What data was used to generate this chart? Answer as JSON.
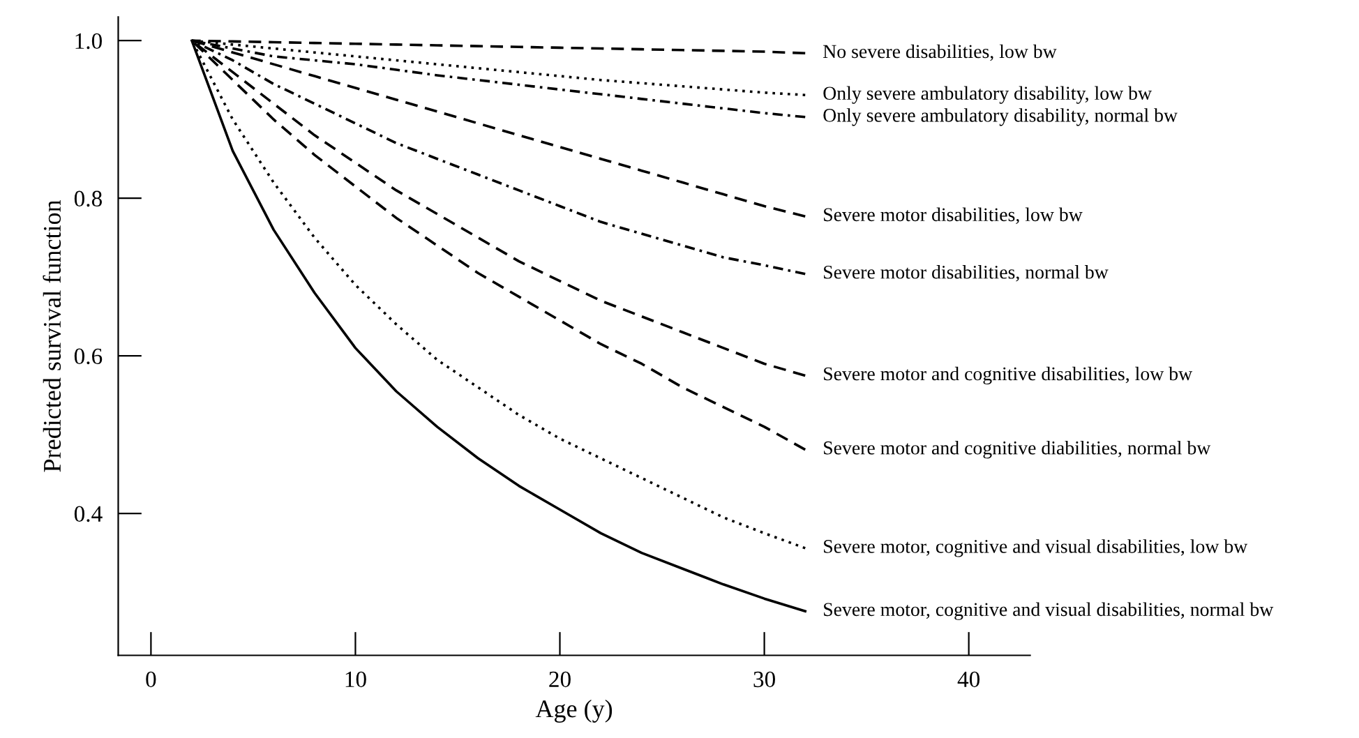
{
  "chart_data": {
    "type": "line",
    "xlabel": "Age (y)",
    "ylabel": "Predicted survival function",
    "x": [
      2,
      4,
      6,
      8,
      10,
      12,
      14,
      16,
      18,
      20,
      22,
      24,
      26,
      28,
      30,
      32
    ],
    "xlim": [
      -1.6,
      43
    ],
    "ylim": [
      0.22,
      1.03
    ],
    "xticks": [
      0,
      10,
      20,
      30,
      40
    ],
    "yticks": [
      {
        "value": 0.4,
        "label": "0.4"
      },
      {
        "value": 0.6,
        "label": "0.6"
      },
      {
        "value": 0.8,
        "label": "0.8"
      },
      {
        "value": 1.0,
        "label": "1.0"
      }
    ],
    "grid": false,
    "legend": false,
    "marker": "none",
    "series": [
      {
        "name": "No severe disabilities, low bw",
        "color": "#000000",
        "line_style": "dashed",
        "values": [
          1,
          0.999,
          0.998,
          0.997,
          0.996,
          0.995,
          0.994,
          0.993,
          0.992,
          0.991,
          0.99,
          0.989,
          0.988,
          0.987,
          0.986,
          0.984
        ]
      },
      {
        "name": "Only severe ambulatory disability, low bw",
        "color": "#000000",
        "line_style": "dotted",
        "values": [
          1,
          0.995,
          0.99,
          0.985,
          0.98,
          0.975,
          0.97,
          0.965,
          0.96,
          0.955,
          0.95,
          0.946,
          0.942,
          0.938,
          0.934,
          0.931
        ]
      },
      {
        "name": "Only severe ambulatory disability, normal bw",
        "color": "#000000",
        "line_style": "dashdot",
        "values": [
          1,
          0.99,
          0.98,
          0.975,
          0.97,
          0.963,
          0.956,
          0.95,
          0.944,
          0.938,
          0.932,
          0.926,
          0.92,
          0.914,
          0.908,
          0.903
        ]
      },
      {
        "name": "Severe motor disabilities, low bw",
        "color": "#000000",
        "line_style": "dashed",
        "values": [
          1,
          0.985,
          0.97,
          0.955,
          0.94,
          0.925,
          0.91,
          0.895,
          0.88,
          0.865,
          0.85,
          0.835,
          0.82,
          0.805,
          0.79,
          0.777
        ]
      },
      {
        "name": "Severe motor disabilities, normal bw",
        "color": "#000000",
        "line_style": "dashdot",
        "values": [
          1,
          0.975,
          0.945,
          0.92,
          0.895,
          0.87,
          0.85,
          0.83,
          0.81,
          0.79,
          0.77,
          0.755,
          0.74,
          0.725,
          0.715,
          0.704
        ]
      },
      {
        "name": "Severe motor and cognitive disabilities, low bw",
        "color": "#000000",
        "line_style": "dashed",
        "values": [
          1,
          0.96,
          0.92,
          0.88,
          0.845,
          0.81,
          0.78,
          0.75,
          0.72,
          0.695,
          0.67,
          0.65,
          0.63,
          0.61,
          0.59,
          0.575
        ]
      },
      {
        "name": "Severe motor and cognitive diabilities, normal bw",
        "color": "#000000",
        "line_style": "dashed",
        "values": [
          1,
          0.95,
          0.9,
          0.855,
          0.815,
          0.775,
          0.74,
          0.705,
          0.675,
          0.645,
          0.615,
          0.59,
          0.56,
          0.535,
          0.51,
          0.481
        ]
      },
      {
        "name": "Severe motor, cognitive and visual disabilities, low bw",
        "color": "#000000",
        "line_style": "dotted",
        "values": [
          1,
          0.9,
          0.82,
          0.75,
          0.69,
          0.64,
          0.595,
          0.56,
          0.525,
          0.495,
          0.47,
          0.445,
          0.42,
          0.395,
          0.375,
          0.356
        ]
      },
      {
        "name": "Severe motor, cognitive and visual disabilities, normal bw",
        "color": "#000000",
        "line_style": "solid",
        "values": [
          1,
          0.86,
          0.76,
          0.68,
          0.61,
          0.555,
          0.51,
          0.47,
          0.435,
          0.405,
          0.375,
          0.35,
          0.33,
          0.31,
          0.292,
          0.276
        ]
      }
    ]
  }
}
